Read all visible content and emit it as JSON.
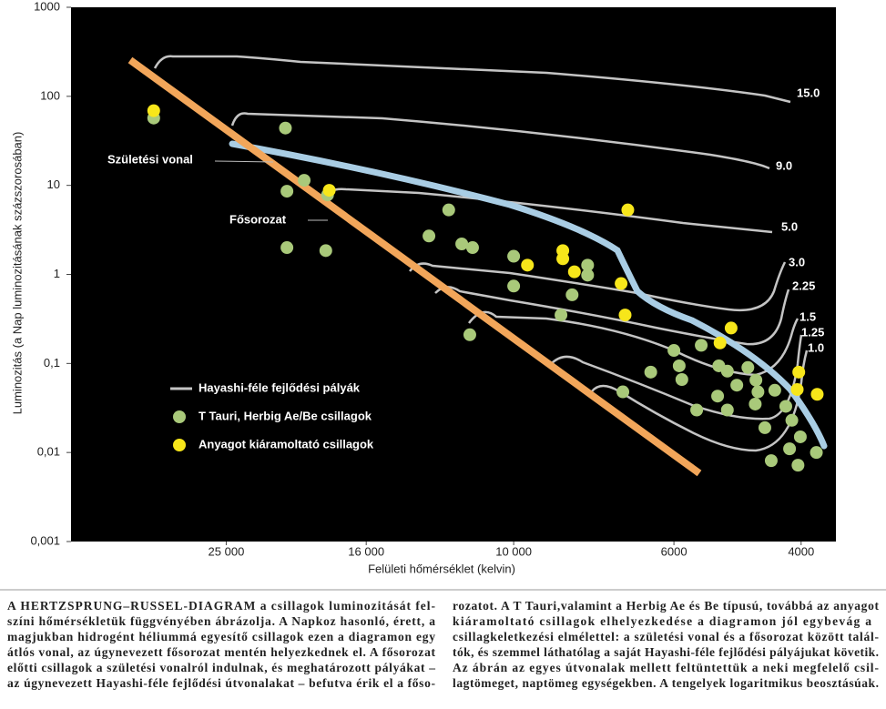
{
  "chart_data": {
    "type": "scatter",
    "log_x": true,
    "log_y": true,
    "xlabel": "Felületi hőmérséklet (kelvin)",
    "ylabel": "Luminozitás (a Nap luminozitásának százszorosában)",
    "xlim": [
      41000,
      3580
    ],
    "ylim": [
      0.001,
      1000
    ],
    "xticks": [
      {
        "value": 25000,
        "label": "25 000"
      },
      {
        "value": 16000,
        "label": "16 000"
      },
      {
        "value": 10000,
        "label": "10 000"
      },
      6000,
      4000
    ],
    "yticks": [
      1000,
      100,
      10,
      1,
      {
        "value": 0.1,
        "label": "0,1"
      },
      {
        "value": 0.01,
        "label": "0,01"
      },
      {
        "value": 0.001,
        "label": "0,001"
      }
    ],
    "annotations": [
      "Születési vonal",
      "Fősorozat"
    ],
    "tracks": {
      "name": "Hayashi-féle fejlődési pályák",
      "color": "#c4c4c4",
      "labels": [
        "15.0",
        "9.0",
        "5.0",
        "3.0",
        "2.25",
        "1.5",
        "1.25",
        "1.0"
      ]
    },
    "series": [
      {
        "name": "T Tauri, Herbig Ae/Be csillagok",
        "color": "#a9c97a",
        "x": [
          31500,
          20700,
          19500,
          20600,
          18100,
          20600,
          18200,
          12300,
          13100,
          11800,
          11400,
          10000,
          7900,
          7900,
          10000,
          8300,
          8600,
          11500,
          6000,
          5500,
          5900,
          5200,
          5060,
          4740,
          6460,
          5850,
          4910,
          4620,
          5220,
          4590,
          4350,
          4200,
          7060,
          4630,
          5580,
          5060,
          4120,
          4490,
          4010,
          4150,
          3810,
          4400,
          4040
        ],
        "values": [
          57,
          44,
          11.4,
          8.6,
          7.8,
          2.0,
          1.85,
          5.3,
          2.7,
          2.2,
          2.0,
          1.6,
          1.27,
          0.98,
          0.74,
          0.59,
          0.35,
          0.21,
          0.14,
          0.16,
          0.094,
          0.094,
          0.082,
          0.09,
          0.08,
          0.066,
          0.057,
          0.065,
          0.043,
          0.048,
          0.05,
          0.033,
          0.048,
          0.035,
          0.03,
          0.03,
          0.023,
          0.019,
          0.015,
          0.011,
          0.01,
          0.0081,
          0.0072
        ]
      },
      {
        "name": "Anyagot kiáramoltató csillagok",
        "color": "#f7e61a",
        "x": [
          31500,
          18000,
          6950,
          8550,
          8550,
          9570,
          8240,
          7100,
          7010,
          5000,
          5180,
          4030,
          4050,
          3800
        ],
        "values": [
          69,
          8.8,
          5.3,
          1.85,
          1.5,
          1.27,
          1.07,
          0.79,
          0.35,
          0.25,
          0.17,
          0.08,
          0.051,
          0.045
        ]
      }
    ]
  },
  "caption": {
    "left": [
      "A HERTZSPRUNG–RUSSEL-DIAGRAM a csillagok luminozitását fel-",
      "színi hőmérsékletük függvényében ábrázolja. A Napkoz hasonló, érett, a",
      "magjukban hidrogént héliummá egyesítő csillagok ezen a diagramon egy",
      "átlós vonal, az úgynevezett fősorozat mentén helyezkednek el. A fősorozat",
      "előtti csillagok a születési vonalról indulnak, és meghatározott pályákat –",
      "az úgynevezett Hayashi-féle fejlődési útvonalakat – befutva érik el a főso-"
    ],
    "right": [
      "rozatot. A T Tauri,valamint a Herbig Ae és Be típusú, továbbá az anyagot",
      "kiáramoltató csillagok elhelyezkedése a diagramon jól egybevág a",
      "csillagkeletkezési elmélettel: a születési vonal és a fősorozat között talál-",
      "tók, és szemmel láthatólag a saját Hayashi-féle fejlődési pályájukat követik.",
      "Az ábrán az egyes útvonalak mellett feltüntettük a neki megfelelő csil-",
      "lagtömeget, naptömeg egységekben. A tengelyek logaritmikus beosztásúak."
    ]
  }
}
